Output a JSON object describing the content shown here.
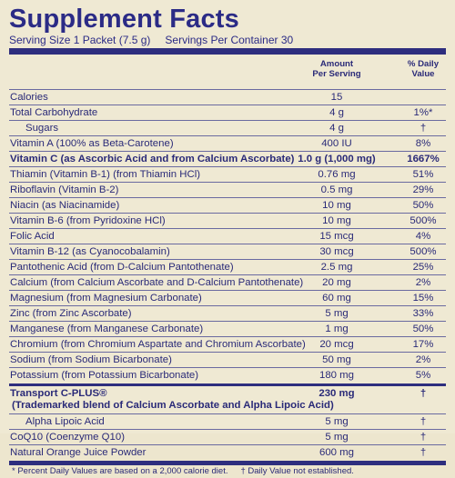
{
  "title": "Supplement Facts",
  "serving_size": "Serving Size 1 Packet (7.5 g)",
  "servings_per_container": "Servings Per Container 30",
  "header": {
    "amount": "Amount\nPer Serving",
    "dv": "% Daily\nValue"
  },
  "rows": [
    {
      "name": "Calories",
      "amount": "15",
      "dv": ""
    },
    {
      "name": "Total Carbohydrate",
      "amount": "4 g",
      "dv": "1%*"
    },
    {
      "name": "Sugars",
      "amount": "4 g",
      "dv": "†"
    },
    {
      "name": "Vitamin A (100% as Beta-Carotene)",
      "amount": "400 IU",
      "dv": "8%"
    },
    {
      "name": "Vitamin C (as Ascorbic Acid and from Calcium Ascorbate)",
      "amount": "1.0 g (1,000 mg)",
      "dv": "1667%"
    },
    {
      "name": "Thiamin (Vitamin B-1) (from Thiamin HCl)",
      "amount": "0.76 mg",
      "dv": "51%"
    },
    {
      "name": "Riboflavin (Vitamin B-2)",
      "amount": "0.5 mg",
      "dv": "29%"
    },
    {
      "name": "Niacin (as Niacinamide)",
      "amount": "10 mg",
      "dv": "50%"
    },
    {
      "name": "Vitamin B-6 (from Pyridoxine HCl)",
      "amount": "10 mg",
      "dv": "500%"
    },
    {
      "name": "Folic Acid",
      "amount": "15 mcg",
      "dv": "4%"
    },
    {
      "name": "Vitamin B-12 (as Cyanocobalamin)",
      "amount": "30 mcg",
      "dv": "500%"
    },
    {
      "name": "Pantothenic Acid (from D-Calcium Pantothenate)",
      "amount": "2.5 mg",
      "dv": "25%"
    },
    {
      "name": "Calcium (from Calcium Ascorbate and D-Calcium Pantothenate)",
      "amount": "20 mg",
      "dv": "2%"
    },
    {
      "name": "Magnesium (from Magnesium Carbonate)",
      "amount": "60 mg",
      "dv": "15%"
    },
    {
      "name": "Zinc (from Zinc Ascorbate)",
      "amount": "5 mg",
      "dv": "33%"
    },
    {
      "name": "Manganese (from Manganese Carbonate)",
      "amount": "1 mg",
      "dv": "50%"
    },
    {
      "name": "Chromium (from Chromium Aspartate and Chromium Ascorbate)",
      "amount": "20 mcg",
      "dv": "17%"
    },
    {
      "name": "Sodium (from Sodium Bicarbonate)",
      "amount": "50 mg",
      "dv": "2%"
    },
    {
      "name": "Potassium (from Potassium Bicarbonate)",
      "amount": "180 mg",
      "dv": "5%"
    }
  ],
  "blend": {
    "name_line1": "Transport C-PLUS®",
    "name_line2": "(Trademarked blend of Calcium Ascorbate and Alpha Lipoic Acid)",
    "amount": "230 mg",
    "dv": "†"
  },
  "rows_after": [
    {
      "name": "Alpha Lipoic Acid",
      "amount": "5 mg",
      "dv": "†"
    },
    {
      "name": "CoQ10 (Coenzyme Q10)",
      "amount": "5 mg",
      "dv": "†"
    },
    {
      "name": "Natural Orange Juice Powder",
      "amount": "600 mg",
      "dv": "†"
    }
  ],
  "footnote_1": "* Percent Daily Values are based on a 2,000 calorie diet.",
  "footnote_2": "† Daily Value not established."
}
